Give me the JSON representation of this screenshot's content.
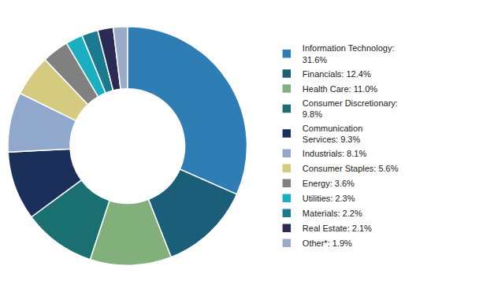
{
  "chart_data": {
    "type": "donut",
    "categories": [
      "Information Technology:\n31.6%",
      "Financials: 12.4%",
      "Health Care: 11.0%",
      "Consumer Discretionary:\n9.8%",
      "Communication\nServices: 9.3%",
      "Industrials: 8.1%",
      "Consumer Staples: 5.6%",
      "Energy: 3.6%",
      "Utilities: 2.3%",
      "Materials: 2.2%",
      "Real Estate: 2.1%",
      "Other*: 1.9%"
    ],
    "values": [
      31.6,
      12.4,
      11.0,
      9.8,
      9.3,
      8.1,
      5.6,
      3.6,
      2.3,
      2.2,
      2.1,
      1.9
    ],
    "colors": [
      "#2E7EB5",
      "#1A5E7A",
      "#82B07A",
      "#1A7070",
      "#1A2F5A",
      "#8FA8CC",
      "#D4CA80",
      "#808080",
      "#1AAFC0",
      "#1A7A90",
      "#2A2A55",
      "#9AACC8"
    ],
    "legend": "right"
  }
}
